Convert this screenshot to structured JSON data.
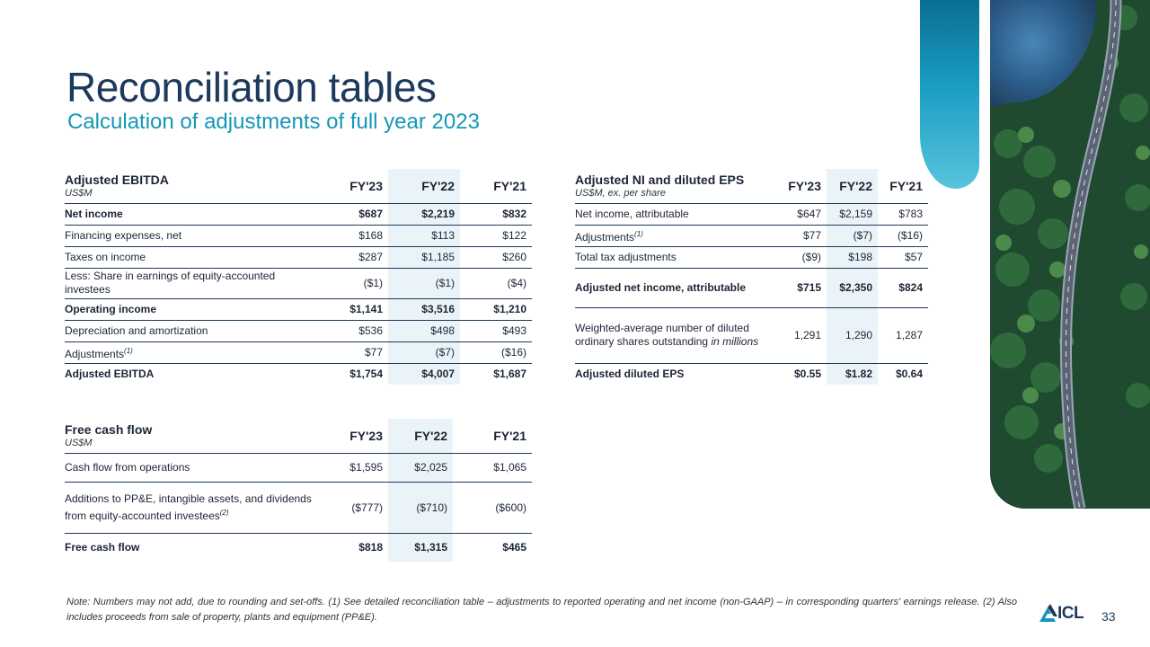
{
  "title": "Reconciliation tables",
  "subtitle": "Calculation of adjustments of full year 2023",
  "ebitda": {
    "name": "Adjusted EBITDA",
    "unit": "US$M",
    "cols": [
      "FY'23",
      "FY'22",
      "FY'21"
    ],
    "rows": [
      {
        "label": "Net income",
        "fn": "",
        "values": [
          "$687",
          "$2,219",
          "$832"
        ]
      },
      {
        "label": "Financing expenses, net",
        "fn": "",
        "values": [
          "$168",
          "$113",
          "$122"
        ]
      },
      {
        "label": "Taxes on income",
        "fn": "",
        "values": [
          "$287",
          "$1,185",
          "$260"
        ]
      },
      {
        "label": "Less: Share in earnings of equity-accounted investees",
        "fn": "",
        "values": [
          "($1)",
          "($1)",
          "($4)"
        ]
      },
      {
        "label": "Operating income",
        "fn": "",
        "values": [
          "$1,141",
          "$3,516",
          "$1,210"
        ]
      },
      {
        "label": "Depreciation and amortization",
        "fn": "",
        "values": [
          "$536",
          "$498",
          "$493"
        ]
      },
      {
        "label": "Adjustments",
        "fn": "(1)",
        "values": [
          "$77",
          "($7)",
          "($16)"
        ]
      },
      {
        "label": "Adjusted EBITDA",
        "fn": "",
        "values": [
          "$1,754",
          "$4,007",
          "$1,687"
        ]
      }
    ]
  },
  "ni": {
    "name": "Adjusted NI and diluted EPS",
    "unit": "US$M, ex. per share",
    "cols": [
      "FY'23",
      "FY'22",
      "FY'21"
    ],
    "rows": [
      {
        "label": "Net income, attributable",
        "fn": "",
        "values": [
          "$647",
          "$2,159",
          "$783"
        ]
      },
      {
        "label": "Adjustments",
        "fn": "(1)",
        "values": [
          "$77",
          "($7)",
          "($16)"
        ]
      },
      {
        "label": "Total tax adjustments",
        "fn": "",
        "values": [
          "($9)",
          "$198",
          "$57"
        ]
      },
      {
        "label": "Adjusted net income, attributable",
        "fn": "",
        "values": [
          "$715",
          "$2,350",
          "$824"
        ]
      },
      {
        "label": "Weighted-average number of diluted ordinary shares outstanding",
        "label_italic": "in millions",
        "fn": "",
        "values": [
          "1,291",
          "1,290",
          "1,287"
        ]
      },
      {
        "label": "Adjusted diluted EPS",
        "fn": "",
        "values": [
          "$0.55",
          "$1.82",
          "$0.64"
        ]
      }
    ]
  },
  "fcf": {
    "name": "Free cash flow",
    "unit": "US$M",
    "cols": [
      "FY'23",
      "FY'22",
      "FY'21"
    ],
    "rows": [
      {
        "label": "Cash flow from operations",
        "fn": "",
        "values": [
          "$1,595",
          "$2,025",
          "$1,065"
        ]
      },
      {
        "label": "Additions to PP&E, intangible assets, and dividends from equity-accounted investees",
        "fn": "(2)",
        "values": [
          "($777)",
          "($710)",
          "($600)"
        ]
      },
      {
        "label": "Free cash flow",
        "fn": "",
        "values": [
          "$818",
          "$1,315",
          "$465"
        ]
      }
    ]
  },
  "note": "Note: Numbers may not add, due to rounding and set-offs. (1) See detailed reconciliation table – adjustments to reported operating and net income (non-GAAP) – in corresponding quarters' earnings release. (2) Also includes proceeds from sale of property, plants and equipment (PP&E).",
  "logo_text": "ICL",
  "page_number": "33",
  "colors": {
    "navy": "#1d3a5c",
    "teal": "#1597b8",
    "shade": "#eaf4f8"
  }
}
